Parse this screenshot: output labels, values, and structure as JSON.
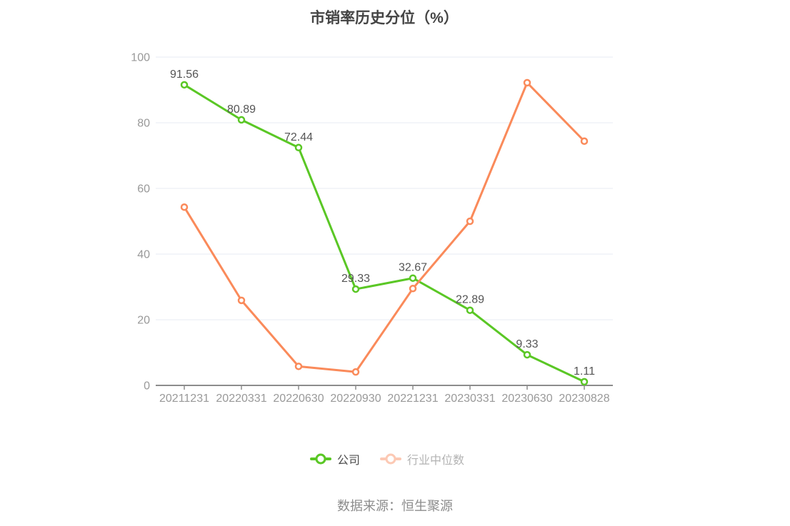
{
  "title": {
    "text": "市销率历史分位（%）"
  },
  "source": {
    "text": "数据来源：恒生聚源"
  },
  "colors": {
    "company_green": "#5ac725",
    "industry_orange": "#fa8a5a",
    "grid_line": "#e7ebf3",
    "axis_line": "#8c8c8c",
    "tick_label": "#999999",
    "data_label": "#555555",
    "title_text": "#444444",
    "source_text": "#8c8c8c",
    "legend_label_active": "#4d4d4d",
    "legend_label_muted": "#b3b3b3"
  },
  "legend": {
    "items": [
      {
        "label": "公司",
        "color": "#5ac725",
        "muted": false
      },
      {
        "label": "行业中位数",
        "color": "#fa8a5a",
        "muted": true
      }
    ]
  },
  "chart_data": {
    "type": "line",
    "categories": [
      "20211231",
      "20220331",
      "20220630",
      "20220930",
      "20221231",
      "20230331",
      "20230630",
      "20230828"
    ],
    "series": [
      {
        "name": "公司",
        "color": "#5ac725",
        "values": [
          91.56,
          80.89,
          72.44,
          29.33,
          32.67,
          22.89,
          9.33,
          1.11
        ],
        "show_labels": true
      },
      {
        "name": "行业中位数",
        "color": "#fa8a5a",
        "values": [
          54.3,
          25.9,
          5.8,
          4.1,
          29.5,
          50.0,
          92.2,
          74.4
        ],
        "show_labels": false
      }
    ],
    "title": "市销率历史分位（%）",
    "xlabel": "",
    "ylabel": "",
    "ylim": [
      0,
      100
    ],
    "yticks": [
      0,
      20,
      40,
      60,
      80,
      100
    ],
    "grid": true,
    "legend_position": "bottom"
  }
}
